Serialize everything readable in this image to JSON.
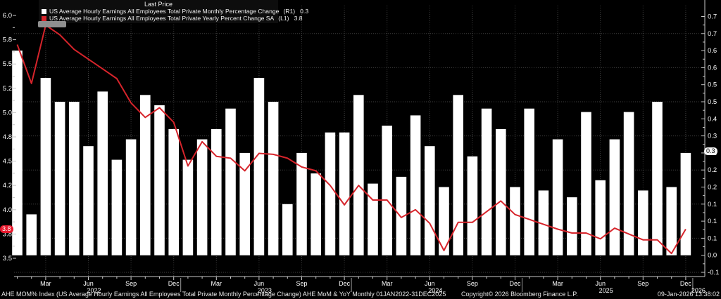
{
  "window": {
    "app": "Bloomberg Terminal chart"
  },
  "legend": {
    "title": "Last Price",
    "rows": [
      {
        "icon": "white-square-swatch",
        "color": "#ffffff",
        "label": "US Average Hourly Earnings All Employees Total Private Monthly Percentage Change",
        "axis": "(R1)",
        "last": "0.3"
      },
      {
        "icon": "red-square-swatch",
        "color": "#d6242b",
        "label": "US Average Hourly Earnings All Employees Total Private Yearly Percent Change SA",
        "axis": "(L1)",
        "last": "3.8"
      }
    ]
  },
  "badges": {
    "left_axis_last": "3.8",
    "right_axis_last": "0.3"
  },
  "axes": {
    "left_ticks": [
      "6.0",
      "5.8",
      "5.5",
      "5.2",
      "5.0",
      "4.8",
      "4.5",
      "4.2",
      "4.0",
      "3.8",
      "3.5"
    ],
    "right_ticks": [
      "0.7",
      "0.7",
      "0.6",
      "0.6",
      "0.5",
      "0.5",
      "0.4",
      "0.3",
      "0.3",
      "0.2",
      "0.2",
      "0.1",
      "0.1",
      "0.1",
      "0.0",
      "-0.1"
    ],
    "quarter_labels": [
      "Mar",
      "Jun",
      "Sep",
      "Dec",
      "Mar",
      "Jun",
      "Sep",
      "Dec",
      "Mar",
      "Jun",
      "Sep",
      "Dec",
      "Mar",
      "Jun",
      "Sep",
      "Dec"
    ],
    "year_labels": [
      "2022",
      "2023",
      "2024",
      "2025",
      "2026"
    ]
  },
  "footer": {
    "left": "AHE MOM% Index (US Average Hourly Earnings All Employees Total Private Monthly Percentage Change) AHE MoM & YoY Monthly 01JAN2022-31DEC2025",
    "center": "Copyright© 2026 Bloomberg Finance L.P.",
    "right": "09-Jan-2026 13:38:02"
  },
  "chart_data": {
    "type": "bar",
    "title": "Last Price",
    "x": [
      "Jan-22",
      "Feb-22",
      "Mar-22",
      "Apr-22",
      "May-22",
      "Jun-22",
      "Jul-22",
      "Aug-22",
      "Sep-22",
      "Oct-22",
      "Nov-22",
      "Dec-22",
      "Jan-23",
      "Feb-23",
      "Mar-23",
      "Apr-23",
      "May-23",
      "Jun-23",
      "Jul-23",
      "Aug-23",
      "Sep-23",
      "Oct-23",
      "Nov-23",
      "Dec-23",
      "Jan-24",
      "Feb-24",
      "Mar-24",
      "Apr-24",
      "May-24",
      "Jun-24",
      "Jul-24",
      "Aug-24",
      "Sep-24",
      "Oct-24",
      "Nov-24",
      "Dec-24",
      "Jan-25",
      "Feb-25",
      "Mar-25",
      "Apr-25",
      "May-25",
      "Jun-25",
      "Jul-25",
      "Aug-25",
      "Sep-25",
      "Oct-25",
      "Nov-25",
      "Dec-25"
    ],
    "series": [
      {
        "name": "US Average Hourly Earnings All Employees Total Private Monthly Percentage Change",
        "type": "bar",
        "axis": "R1",
        "color": "#ffffff",
        "last": 0.3,
        "values": [
          0.6,
          0.12,
          0.52,
          0.45,
          0.45,
          0.32,
          0.48,
          0.28,
          0.34,
          0.47,
          0.44,
          0.37,
          0.28,
          0.34,
          0.37,
          0.43,
          0.3,
          0.52,
          0.45,
          0.15,
          0.3,
          0.24,
          0.36,
          0.36,
          0.47,
          0.21,
          0.38,
          0.23,
          0.41,
          0.32,
          0.2,
          0.47,
          0.29,
          0.43,
          0.37,
          0.2,
          0.43,
          0.19,
          0.34,
          0.17,
          0.42,
          0.22,
          0.34,
          0.42,
          0.19,
          0.45,
          0.2,
          0.3
        ]
      },
      {
        "name": "US Average Hourly Earnings All Employees Total Private Yearly Percent Change SA",
        "type": "line",
        "axis": "L1",
        "color": "#d6242b",
        "last": 3.8,
        "values": [
          5.7,
          5.3,
          5.9,
          5.8,
          5.65,
          5.55,
          5.45,
          5.35,
          5.1,
          4.95,
          5.05,
          4.9,
          4.45,
          4.7,
          4.55,
          4.53,
          4.4,
          4.58,
          4.57,
          4.53,
          4.44,
          4.4,
          4.25,
          4.05,
          4.25,
          4.1,
          4.1,
          3.92,
          4.0,
          3.86,
          3.58,
          3.87,
          3.87,
          3.98,
          4.09,
          3.95,
          3.9,
          3.85,
          3.8,
          3.76,
          3.76,
          3.7,
          3.81,
          3.75,
          3.69,
          3.69,
          3.55,
          3.8
        ]
      }
    ],
    "left_axis_range": [
      3.3,
      6.1
    ],
    "right_axis_range": [
      -0.065,
      0.73
    ],
    "grid": "dotted",
    "legend_position": "top-left"
  }
}
